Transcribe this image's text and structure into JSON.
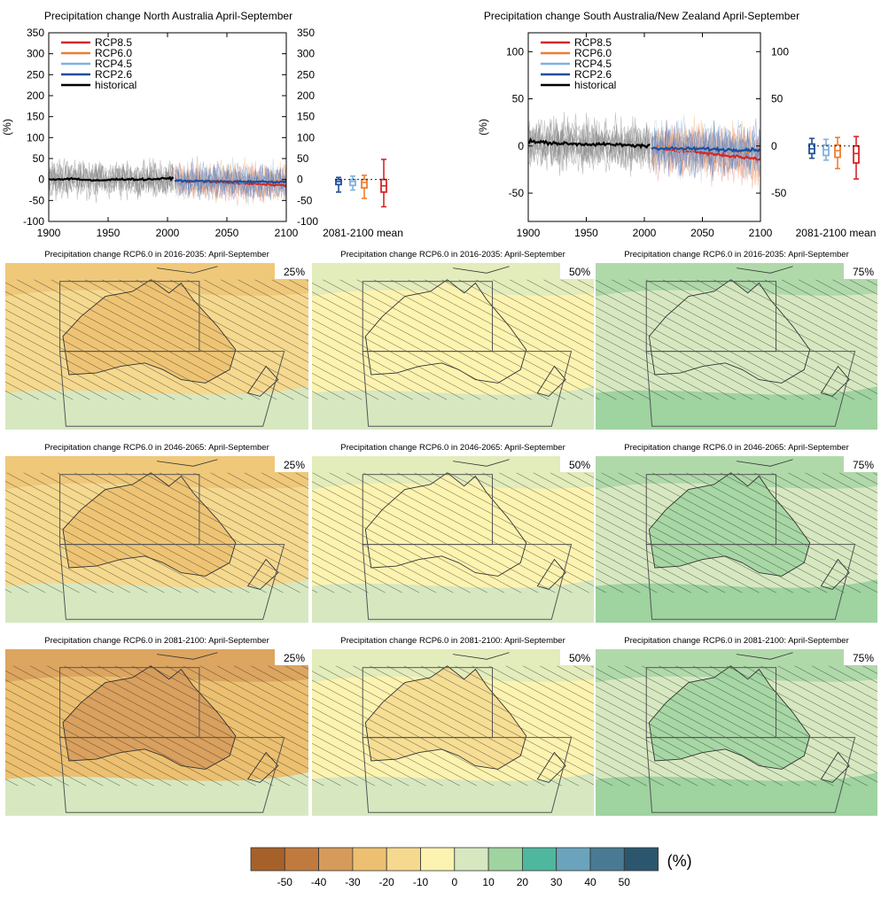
{
  "chart_data": {
    "type": "line",
    "timeseries_panels": [
      {
        "title": "Precipitation change North Australia April-September",
        "ylabel": "(%)",
        "xlabel": "2081-2100 mean",
        "xlim": [
          1900,
          2100
        ],
        "ylim": [
          -100,
          350
        ],
        "xticks": [
          1900,
          1950,
          2000,
          2050,
          2100
        ],
        "yticks": [
          -100,
          -50,
          0,
          50,
          100,
          150,
          200,
          250,
          300,
          350
        ],
        "legend_position": "top-left",
        "legend": [
          {
            "name": "RCP8.5",
            "color": "#d62728"
          },
          {
            "name": "RCP6.0",
            "color": "#ee7d31"
          },
          {
            "name": "RCP4.5",
            "color": "#7fb1dc"
          },
          {
            "name": "RCP2.6",
            "color": "#1f4e9a"
          },
          {
            "name": "historical",
            "color": "#000000"
          }
        ],
        "series": [
          {
            "name": "historical",
            "x": [
              1900,
              1920,
              1940,
              1960,
              1980,
              2005
            ],
            "y": [
              0,
              2,
              -3,
              1,
              0,
              3
            ]
          },
          {
            "name": "RCP2.6",
            "x": [
              2006,
              2030,
              2050,
              2070,
              2100
            ],
            "y": [
              -3,
              -4,
              -5,
              -5,
              -6
            ]
          },
          {
            "name": "RCP4.5",
            "x": [
              2006,
              2030,
              2050,
              2070,
              2100
            ],
            "y": [
              -3,
              -4,
              -5,
              -6,
              -7
            ]
          },
          {
            "name": "RCP6.0",
            "x": [
              2006,
              2030,
              2050,
              2070,
              2100
            ],
            "y": [
              -3,
              -3,
              -4,
              -5,
              -5
            ]
          },
          {
            "name": "RCP8.5",
            "x": [
              2006,
              2030,
              2050,
              2070,
              2100
            ],
            "y": [
              -3,
              -5,
              -7,
              -10,
              -14
            ]
          }
        ],
        "boxplots": [
          {
            "name": "RCP2.6",
            "color": "#1f4e9a",
            "min": -30,
            "q1": -12,
            "median": -5,
            "q3": 0,
            "max": 5
          },
          {
            "name": "RCP4.5",
            "color": "#7fb1dc",
            "min": -25,
            "q1": -14,
            "median": -5,
            "q3": 0,
            "max": 8
          },
          {
            "name": "RCP6.0",
            "color": "#ee7d31",
            "min": -45,
            "q1": -20,
            "median": -7,
            "q3": 0,
            "max": 10
          },
          {
            "name": "RCP8.5",
            "color": "#d62728",
            "min": -65,
            "q1": -30,
            "median": -15,
            "q3": 0,
            "max": 48
          }
        ]
      },
      {
        "title": "Precipitation change South Australia/New Zealand April-September",
        "ylabel": "(%)",
        "xlabel": "2081-2100 mean",
        "xlim": [
          1900,
          2100
        ],
        "ylim": [
          -80,
          120
        ],
        "xticks": [
          1900,
          1950,
          2000,
          2050,
          2100
        ],
        "yticks": [
          -50,
          0,
          50,
          100
        ],
        "legend_position": "top-left",
        "legend": [
          {
            "name": "RCP8.5",
            "color": "#d62728"
          },
          {
            "name": "RCP6.0",
            "color": "#ee7d31"
          },
          {
            "name": "RCP4.5",
            "color": "#7fb1dc"
          },
          {
            "name": "RCP2.6",
            "color": "#1f4e9a"
          },
          {
            "name": "historical",
            "color": "#000000"
          }
        ],
        "series": [
          {
            "name": "historical",
            "x": [
              1900,
              1920,
              1940,
              1960,
              1980,
              2005
            ],
            "y": [
              5,
              3,
              2,
              2,
              1,
              0
            ]
          },
          {
            "name": "RCP2.6",
            "x": [
              2006,
              2030,
              2050,
              2070,
              2100
            ],
            "y": [
              -2,
              -3,
              -3,
              -4,
              -4
            ]
          },
          {
            "name": "RCP4.5",
            "x": [
              2006,
              2030,
              2050,
              2070,
              2100
            ],
            "y": [
              -2,
              -3,
              -4,
              -5,
              -6
            ]
          },
          {
            "name": "RCP6.0",
            "x": [
              2006,
              2030,
              2050,
              2070,
              2100
            ],
            "y": [
              -2,
              -2,
              -4,
              -5,
              -6
            ]
          },
          {
            "name": "RCP8.5",
            "x": [
              2006,
              2030,
              2050,
              2070,
              2100
            ],
            "y": [
              -2,
              -4,
              -7,
              -10,
              -14
            ]
          }
        ],
        "boxplots": [
          {
            "name": "RCP2.6",
            "color": "#1f4e9a",
            "min": -13,
            "q1": -8,
            "median": -3,
            "q3": 2,
            "max": 8
          },
          {
            "name": "RCP4.5",
            "color": "#7fb1dc",
            "min": -15,
            "q1": -10,
            "median": -4,
            "q3": 1,
            "max": 7
          },
          {
            "name": "RCP6.0",
            "color": "#ee7d31",
            "min": -24,
            "q1": -12,
            "median": -5,
            "q3": 1,
            "max": 9
          },
          {
            "name": "RCP8.5",
            "color": "#d62728",
            "min": -35,
            "q1": -18,
            "median": -8,
            "q3": 0,
            "max": 10
          }
        ]
      }
    ],
    "map_panels": [
      {
        "title": "Precipitation change RCP6.0 in 2016-2035: April-September",
        "percentile": "25%"
      },
      {
        "title": "Precipitation change RCP6.0 in 2016-2035: April-September",
        "percentile": "50%"
      },
      {
        "title": "Precipitation change RCP6.0 in 2016-2035: April-September",
        "percentile": "75%"
      },
      {
        "title": "Precipitation change RCP6.0 in 2046-2065: April-September",
        "percentile": "25%"
      },
      {
        "title": "Precipitation change RCP6.0 in 2046-2065: April-September",
        "percentile": "50%"
      },
      {
        "title": "Precipitation change RCP6.0 in 2046-2065: April-September",
        "percentile": "75%"
      },
      {
        "title": "Precipitation change RCP6.0 in 2081-2100: April-September",
        "percentile": "25%"
      },
      {
        "title": "Precipitation change RCP6.0 in 2081-2100: April-September",
        "percentile": "50%"
      },
      {
        "title": "Precipitation change RCP6.0 in 2081-2100: April-September",
        "percentile": "75%"
      }
    ],
    "colorbar": {
      "unit": "(%)",
      "ticks": [
        "-50",
        "-40",
        "-30",
        "-20",
        "-10",
        "0",
        "10",
        "20",
        "30",
        "40",
        "50"
      ],
      "colors": [
        "#a6612a",
        "#c17a3e",
        "#d69a5a",
        "#ecc070",
        "#f5d98f",
        "#fdf3b0",
        "#d7e8c1",
        "#9fd3a0",
        "#4fb79d",
        "#6aa3bb",
        "#4a7a93",
        "#2c566e"
      ]
    }
  }
}
